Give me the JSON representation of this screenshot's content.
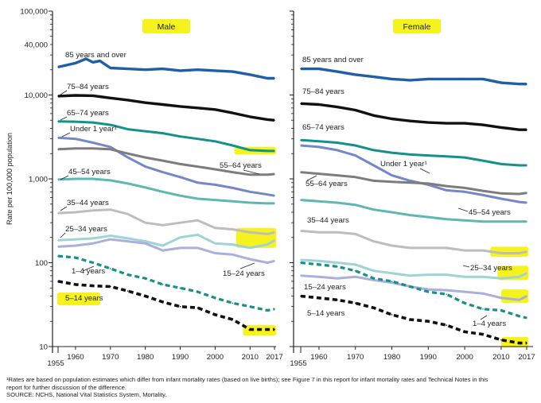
{
  "chart_data": {
    "type": "line",
    "ylabel": "Rate per 100,000 population",
    "yscale": "log",
    "ylim": [
      10,
      100000
    ],
    "ytick_labels": [
      "100,000",
      "40,000",
      "10,000",
      "1,000",
      "100",
      "10"
    ],
    "ytick_values": [
      100000,
      40000,
      10000,
      1000,
      100,
      10
    ],
    "xlim": [
      1955,
      2017
    ],
    "xtick_labels": [
      "1955",
      "1960",
      "1970",
      "1980",
      "1990",
      "2000",
      "2010",
      "2017"
    ],
    "xtick_values": [
      1955,
      1960,
      1970,
      1980,
      1990,
      2000,
      2010,
      2017
    ],
    "grid": false,
    "colors": {
      "85_over": "#1f5fa8",
      "75_84": "#111111",
      "65_74": "#13918c",
      "under_1": "#7387c9",
      "55_64": "#7d7d7d",
      "45_54": "#5fb7b4",
      "35_44": "#bdbdbd",
      "25_34": "#9fd3d6",
      "15_24": "#aab0dc",
      "1_4": "#178f8a",
      "5_14": "#111111",
      "highlight": "#f6f21d"
    },
    "panels": [
      {
        "title": "Male",
        "series": [
          {
            "name": "85 years and over",
            "x": [
              1955,
              1960,
              1963,
              1965,
              1967,
              1970,
              1975,
              1980,
              1985,
              1990,
              1995,
              2000,
              2005,
              2010,
              2015,
              2017
            ],
            "y": [
              21500,
              24000,
              27000,
              24500,
              25500,
              21000,
              20500,
              20000,
              20500,
              19500,
              20000,
              19500,
              19000,
              17500,
              15800,
              15800
            ]
          },
          {
            "name": "75–84 years",
            "x": [
              1955,
              1960,
              1965,
              1970,
              1975,
              1980,
              1985,
              1990,
              1995,
              2000,
              2005,
              2010,
              2015,
              2017
            ],
            "y": [
              9700,
              9900,
              9800,
              9200,
              8700,
              8100,
              7700,
              7300,
              7000,
              6700,
              6100,
              5500,
              5100,
              5000
            ]
          },
          {
            "name": "65–74 years",
            "x": [
              1955,
              1960,
              1965,
              1970,
              1975,
              1980,
              1985,
              1990,
              1995,
              2000,
              2005,
              2010,
              2015,
              2017
            ],
            "y": [
              4850,
              4800,
              4700,
              4400,
              3900,
              3700,
              3500,
              3200,
              3000,
              2800,
              2500,
              2200,
              2150,
              2150
            ]
          },
          {
            "name": "Under 1 year¹",
            "x": [
              1955,
              1960,
              1965,
              1970,
              1975,
              1980,
              1985,
              1990,
              1995,
              2000,
              2005,
              2010,
              2015,
              2017
            ],
            "y": [
              3100,
              3000,
              2700,
              2400,
              1800,
              1400,
              1200,
              1050,
              900,
              850,
              780,
              700,
              650,
              630
            ]
          },
          {
            "name": "55–64 years",
            "x": [
              1955,
              1960,
              1965,
              1970,
              1975,
              1980,
              1985,
              1990,
              1995,
              2000,
              2005,
              2010,
              2015,
              2017
            ],
            "y": [
              2250,
              2300,
              2300,
              2250,
              2000,
              1800,
              1650,
              1500,
              1400,
              1300,
              1200,
              1120,
              1120,
              1140
            ]
          },
          {
            "name": "45–54 years",
            "x": [
              1955,
              1960,
              1965,
              1970,
              1975,
              1980,
              1985,
              1990,
              1995,
              2000,
              2005,
              2010,
              2015,
              2017
            ],
            "y": [
              980,
              1000,
              1000,
              960,
              880,
              790,
              700,
              630,
              580,
              560,
              540,
              520,
              510,
              510
            ]
          },
          {
            "name": "35–44 years",
            "x": [
              1955,
              1960,
              1965,
              1970,
              1975,
              1980,
              1985,
              1990,
              1995,
              2000,
              2005,
              2010,
              2015,
              2017
            ],
            "y": [
              390,
              400,
              420,
              430,
              380,
              300,
              280,
              300,
              320,
              260,
              250,
              230,
              220,
              230
            ]
          },
          {
            "name": "25–34 years",
            "x": [
              1955,
              1960,
              1965,
              1970,
              1975,
              1980,
              1985,
              1990,
              1995,
              2000,
              2005,
              2010,
              2015,
              2017
            ],
            "y": [
              185,
              190,
              195,
              210,
              195,
              180,
              160,
              200,
              215,
              170,
              165,
              150,
              165,
              185
            ]
          },
          {
            "name": "15–24 years",
            "x": [
              1955,
              1960,
              1965,
              1970,
              1975,
              1980,
              1985,
              1990,
              1995,
              2000,
              2005,
              2010,
              2015,
              2017
            ],
            "y": [
              155,
              160,
              170,
              190,
              180,
              170,
              140,
              150,
              150,
              130,
              125,
              110,
              100,
              105
            ]
          },
          {
            "name": "1–4 years",
            "x": [
              1955,
              1960,
              1965,
              1970,
              1975,
              1980,
              1985,
              1990,
              1995,
              2000,
              2005,
              2010,
              2015,
              2017
            ],
            "y": [
              120,
              115,
              100,
              85,
              72,
              65,
              55,
              50,
              45,
              38,
              33,
              30,
              27,
              28
            ]
          },
          {
            "name": "5–14 years",
            "x": [
              1955,
              1960,
              1965,
              1970,
              1975,
              1980,
              1985,
              1990,
              1995,
              2000,
              2005,
              2010,
              2015,
              2017
            ],
            "y": [
              60,
              55,
              53,
              52,
              46,
              40,
              34,
              30,
              29,
              24,
              21,
              16,
              16,
              16
            ]
          }
        ]
      },
      {
        "title": "Female",
        "series": [
          {
            "name": "85 years and over",
            "x": [
              1955,
              1960,
              1965,
              1970,
              1975,
              1980,
              1985,
              1990,
              1995,
              2000,
              2005,
              2010,
              2015,
              2017
            ],
            "y": [
              20500,
              20500,
              19000,
              17500,
              16500,
              15500,
              15000,
              15500,
              15500,
              15500,
              15500,
              14000,
              13500,
              13500
            ]
          },
          {
            "name": "75–84 years",
            "x": [
              1955,
              1960,
              1965,
              1970,
              1975,
              1980,
              1985,
              1990,
              1995,
              2000,
              2005,
              2010,
              2015,
              2017
            ],
            "y": [
              7900,
              7700,
              7200,
              6600,
              5700,
              5200,
              4900,
              4700,
              4600,
              4600,
              4400,
              4100,
              3850,
              3850
            ]
          },
          {
            "name": "65–74 years",
            "x": [
              1955,
              1960,
              1965,
              1970,
              1975,
              1980,
              1985,
              1990,
              1995,
              2000,
              2005,
              2010,
              2015,
              2017
            ],
            "y": [
              2900,
              2800,
              2700,
              2500,
              2200,
              2050,
              1950,
              1900,
              1850,
              1800,
              1650,
              1500,
              1450,
              1450
            ]
          },
          {
            "name": "Under 1 year¹",
            "x": [
              1955,
              1960,
              1965,
              1970,
              1975,
              1980,
              1985,
              1990,
              1995,
              2000,
              2005,
              2010,
              2015,
              2017
            ],
            "y": [
              2500,
              2400,
              2200,
              1900,
              1450,
              1100,
              950,
              850,
              730,
              700,
              640,
              580,
              530,
              520
            ]
          },
          {
            "name": "55–64 years",
            "x": [
              1955,
              1960,
              1965,
              1970,
              1975,
              1980,
              1985,
              1990,
              1995,
              2000,
              2005,
              2010,
              2015,
              2017
            ],
            "y": [
              1200,
              1150,
              1100,
              1050,
              950,
              920,
              900,
              880,
              820,
              780,
              720,
              670,
              660,
              680
            ]
          },
          {
            "name": "45–54 years",
            "x": [
              1955,
              1960,
              1965,
              1970,
              1975,
              1980,
              1985,
              1990,
              1995,
              2000,
              2005,
              2010,
              2015,
              2017
            ],
            "y": [
              560,
              540,
              520,
              490,
              430,
              400,
              370,
              350,
              330,
              320,
              310,
              310,
              310,
              310
            ]
          },
          {
            "name": "35–44 years",
            "x": [
              1955,
              1960,
              1965,
              1970,
              1975,
              1980,
              1985,
              1990,
              1995,
              2000,
              2005,
              2010,
              2015,
              2017
            ],
            "y": [
              240,
              230,
              230,
              220,
              180,
              160,
              150,
              150,
              150,
              140,
              140,
              130,
              130,
              135
            ]
          },
          {
            "name": "25–34 years",
            "x": [
              1955,
              1960,
              1965,
              1970,
              1975,
              1980,
              1985,
              1990,
              1995,
              2000,
              2005,
              2010,
              2015,
              2017
            ],
            "y": [
              108,
              105,
              100,
              95,
              80,
              75,
              70,
              72,
              72,
              68,
              68,
              65,
              68,
              75
            ]
          },
          {
            "name": "15–24 years",
            "x": [
              1955,
              1960,
              1965,
              1970,
              1975,
              1980,
              1985,
              1990,
              1995,
              2000,
              2005,
              2010,
              2015,
              2017
            ],
            "y": [
              70,
              68,
              65,
              68,
              62,
              58,
              52,
              48,
              47,
              45,
              43,
              38,
              36,
              40
            ]
          },
          {
            "name": "1–4 years",
            "x": [
              1955,
              1960,
              1965,
              1970,
              1975,
              1980,
              1985,
              1990,
              1995,
              2000,
              2005,
              2010,
              2015,
              2017
            ],
            "y": [
              100,
              95,
              90,
              80,
              65,
              60,
              52,
              45,
              42,
              33,
              28,
              27,
              23,
              22
            ]
          },
          {
            "name": "5–14 years",
            "x": [
              1955,
              1960,
              1965,
              1970,
              1975,
              1980,
              1985,
              1990,
              1995,
              2000,
              2005,
              2010,
              2015,
              2017
            ],
            "y": [
              40,
              38,
              36,
              33,
              29,
              24,
              21,
              20,
              18,
              15,
              14,
              12,
              11,
              11
            ]
          }
        ]
      }
    ]
  },
  "footnote": {
    "line1": "¹Rates are based on population estimates which differ from infant mortality rates (based on live births); see Figure 7 in this report for infant mortality rates and Technical Notes in this",
    "line2": "report for further discussion of the difference.",
    "line3": "SOURCE: NCHS, National Vital Statistics System, Mortality."
  }
}
